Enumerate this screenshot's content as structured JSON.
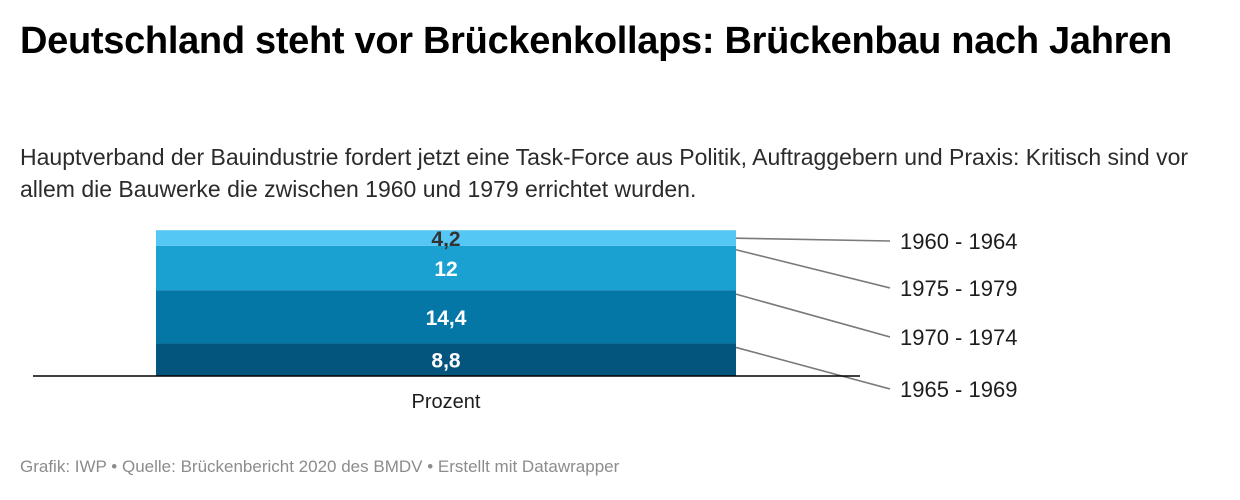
{
  "title": "Deutschland steht vor Brückenkollaps: Brückenbau nach Jahren",
  "subtitle": "Hauptverband der Bauindustrie fordert jetzt eine Task-Force aus Politik, Auftraggebern und Praxis: Kritisch sind vor allem die Bauwerke die zwischen 1960 und 1979 errichtet wurden.",
  "footer": "Grafik: IWP • Quelle: Brückenbericht 2020 des BMDV • Erstellt mit Datawrapper",
  "chart_data": {
    "type": "bar",
    "stacked": true,
    "categories": [
      "Prozent"
    ],
    "series": [
      {
        "name": "1965 - 1969",
        "values": [
          8.8
        ],
        "label": "8,8",
        "color": "#04557d"
      },
      {
        "name": "1970 - 1974",
        "values": [
          14.4
        ],
        "label": "14,4",
        "color": "#0577a7"
      },
      {
        "name": "1975 - 1979",
        "values": [
          12
        ],
        "label": "12",
        "color": "#1aa1d1"
      },
      {
        "name": "1960 - 1964",
        "values": [
          4.2
        ],
        "label": "4,2",
        "color": "#55c7f5"
      }
    ],
    "legend": "right, labels connected to segments by leader lines",
    "grid": false,
    "xlabel": "",
    "ylabel": ""
  }
}
